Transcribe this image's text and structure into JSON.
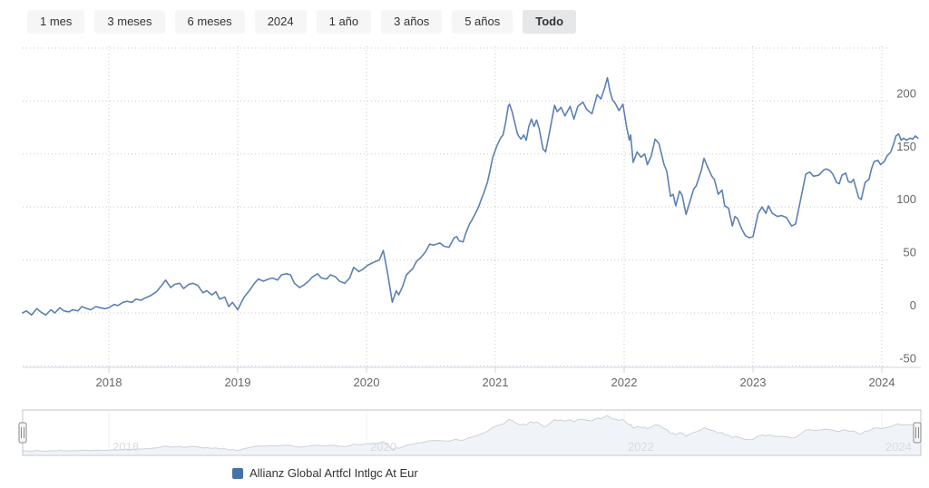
{
  "range_buttons": [
    {
      "label": "1 mes",
      "selected": false
    },
    {
      "label": "3 meses",
      "selected": false
    },
    {
      "label": "6 meses",
      "selected": false
    },
    {
      "label": "2024",
      "selected": false
    },
    {
      "label": "1 año",
      "selected": false
    },
    {
      "label": "3 años",
      "selected": false
    },
    {
      "label": "5 años",
      "selected": false
    },
    {
      "label": "Todo",
      "selected": true
    }
  ],
  "legend": {
    "label": "Allianz Global Artfcl Intlgc At Eur",
    "color": "#4572a7"
  },
  "chart_data": {
    "type": "line",
    "title": "",
    "xlabel": "",
    "ylabel": "",
    "series_name": "Allianz Global Artfcl Intlgc At Eur",
    "line_color": "#5b80b4",
    "grid_color": "#c9c9c9",
    "axis_label_color": "#666666",
    "ylim": [
      -53,
      250
    ],
    "yticks_labeled": [
      200,
      150,
      100,
      50,
      0,
      -50
    ],
    "ygrid": [
      250,
      200,
      150,
      100,
      50,
      0,
      -50
    ],
    "xticks": [
      2018,
      2019,
      2020,
      2021,
      2022,
      2023,
      2024
    ],
    "navigator_ticks": [
      2018,
      2020,
      2022,
      2024
    ],
    "x_unit": "year",
    "y_unit": "% cumulative return",
    "points": [
      [
        2017.33,
        0
      ],
      [
        2017.36,
        2
      ],
      [
        2017.4,
        -2
      ],
      [
        2017.44,
        4
      ],
      [
        2017.47,
        1
      ],
      [
        2017.51,
        -2
      ],
      [
        2017.55,
        3
      ],
      [
        2017.58,
        0
      ],
      [
        2017.62,
        5
      ],
      [
        2017.65,
        2
      ],
      [
        2017.69,
        1
      ],
      [
        2017.72,
        3
      ],
      [
        2017.76,
        2
      ],
      [
        2017.79,
        6
      ],
      [
        2017.83,
        4
      ],
      [
        2017.86,
        3
      ],
      [
        2017.9,
        6
      ],
      [
        2017.93,
        5
      ],
      [
        2017.97,
        4
      ],
      [
        2018.0,
        5
      ],
      [
        2018.04,
        8
      ],
      [
        2018.07,
        7
      ],
      [
        2018.11,
        10
      ],
      [
        2018.14,
        11
      ],
      [
        2018.18,
        10
      ],
      [
        2018.21,
        13
      ],
      [
        2018.25,
        12
      ],
      [
        2018.28,
        14
      ],
      [
        2018.32,
        16
      ],
      [
        2018.37,
        20
      ],
      [
        2018.41,
        26
      ],
      [
        2018.44,
        31
      ],
      [
        2018.48,
        24
      ],
      [
        2018.51,
        27
      ],
      [
        2018.55,
        28
      ],
      [
        2018.58,
        23
      ],
      [
        2018.62,
        27
      ],
      [
        2018.65,
        28
      ],
      [
        2018.69,
        26
      ],
      [
        2018.73,
        19
      ],
      [
        2018.76,
        21
      ],
      [
        2018.8,
        17
      ],
      [
        2018.83,
        20
      ],
      [
        2018.86,
        13
      ],
      [
        2018.9,
        15
      ],
      [
        2018.93,
        6
      ],
      [
        2018.96,
        10
      ],
      [
        2019.0,
        3
      ],
      [
        2019.05,
        15
      ],
      [
        2019.09,
        21
      ],
      [
        2019.13,
        28
      ],
      [
        2019.16,
        32
      ],
      [
        2019.2,
        30
      ],
      [
        2019.24,
        32
      ],
      [
        2019.27,
        33
      ],
      [
        2019.31,
        31
      ],
      [
        2019.34,
        36
      ],
      [
        2019.38,
        37
      ],
      [
        2019.41,
        36
      ],
      [
        2019.44,
        28
      ],
      [
        2019.48,
        24
      ],
      [
        2019.51,
        26
      ],
      [
        2019.55,
        30
      ],
      [
        2019.58,
        34
      ],
      [
        2019.62,
        37
      ],
      [
        2019.65,
        33
      ],
      [
        2019.69,
        32
      ],
      [
        2019.72,
        36
      ],
      [
        2019.76,
        34
      ],
      [
        2019.79,
        30
      ],
      [
        2019.83,
        28
      ],
      [
        2019.87,
        33
      ],
      [
        2019.9,
        43
      ],
      [
        2019.94,
        39
      ],
      [
        2019.97,
        41
      ],
      [
        2020.01,
        45
      ],
      [
        2020.06,
        48
      ],
      [
        2020.1,
        50
      ],
      [
        2020.13,
        59
      ],
      [
        2020.16,
        40
      ],
      [
        2020.18,
        25
      ],
      [
        2020.2,
        10
      ],
      [
        2020.23,
        21
      ],
      [
        2020.25,
        17
      ],
      [
        2020.28,
        25
      ],
      [
        2020.31,
        36
      ],
      [
        2020.36,
        42
      ],
      [
        2020.39,
        49
      ],
      [
        2020.42,
        52
      ],
      [
        2020.46,
        58
      ],
      [
        2020.49,
        65
      ],
      [
        2020.52,
        64
      ],
      [
        2020.57,
        66
      ],
      [
        2020.6,
        63
      ],
      [
        2020.64,
        62
      ],
      [
        2020.68,
        71
      ],
      [
        2020.7,
        72
      ],
      [
        2020.72,
        68
      ],
      [
        2020.75,
        67
      ],
      [
        2020.77,
        75
      ],
      [
        2020.8,
        84
      ],
      [
        2020.82,
        88
      ],
      [
        2020.85,
        95
      ],
      [
        2020.87,
        100
      ],
      [
        2020.89,
        107
      ],
      [
        2020.91,
        113
      ],
      [
        2020.94,
        124
      ],
      [
        2020.96,
        135
      ],
      [
        2020.98,
        147
      ],
      [
        2021.01,
        157
      ],
      [
        2021.04,
        165
      ],
      [
        2021.06,
        168
      ],
      [
        2021.08,
        180
      ],
      [
        2021.1,
        195
      ],
      [
        2021.11,
        197
      ],
      [
        2021.13,
        190
      ],
      [
        2021.15,
        180
      ],
      [
        2021.17,
        170
      ],
      [
        2021.18,
        167
      ],
      [
        2021.2,
        164
      ],
      [
        2021.22,
        168
      ],
      [
        2021.24,
        163
      ],
      [
        2021.26,
        176
      ],
      [
        2021.28,
        183
      ],
      [
        2021.3,
        176
      ],
      [
        2021.32,
        182
      ],
      [
        2021.34,
        174
      ],
      [
        2021.37,
        155
      ],
      [
        2021.39,
        152
      ],
      [
        2021.42,
        170
      ],
      [
        2021.46,
        196
      ],
      [
        2021.48,
        190
      ],
      [
        2021.51,
        194
      ],
      [
        2021.54,
        186
      ],
      [
        2021.58,
        195
      ],
      [
        2021.61,
        183
      ],
      [
        2021.64,
        195
      ],
      [
        2021.68,
        199
      ],
      [
        2021.71,
        192
      ],
      [
        2021.75,
        188
      ],
      [
        2021.79,
        206
      ],
      [
        2021.82,
        202
      ],
      [
        2021.85,
        213
      ],
      [
        2021.87,
        222
      ],
      [
        2021.89,
        209
      ],
      [
        2021.91,
        201
      ],
      [
        2021.93,
        198
      ],
      [
        2021.96,
        191
      ],
      [
        2021.99,
        197
      ],
      [
        2022.02,
        175
      ],
      [
        2022.04,
        163
      ],
      [
        2022.05,
        168
      ],
      [
        2022.07,
        142
      ],
      [
        2022.1,
        152
      ],
      [
        2022.13,
        147
      ],
      [
        2022.16,
        150
      ],
      [
        2022.18,
        140
      ],
      [
        2022.21,
        148
      ],
      [
        2022.24,
        164
      ],
      [
        2022.27,
        160
      ],
      [
        2022.31,
        140
      ],
      [
        2022.33,
        134
      ],
      [
        2022.36,
        110
      ],
      [
        2022.38,
        112
      ],
      [
        2022.4,
        101
      ],
      [
        2022.43,
        115
      ],
      [
        2022.45,
        111
      ],
      [
        2022.48,
        93
      ],
      [
        2022.51,
        105
      ],
      [
        2022.54,
        117
      ],
      [
        2022.56,
        120
      ],
      [
        2022.6,
        135
      ],
      [
        2022.62,
        146
      ],
      [
        2022.64,
        140
      ],
      [
        2022.68,
        129
      ],
      [
        2022.7,
        126
      ],
      [
        2022.73,
        112
      ],
      [
        2022.76,
        116
      ],
      [
        2022.78,
        101
      ],
      [
        2022.81,
        99
      ],
      [
        2022.84,
        82
      ],
      [
        2022.86,
        91
      ],
      [
        2022.88,
        89
      ],
      [
        2022.91,
        80
      ],
      [
        2022.94,
        73
      ],
      [
        2022.97,
        71
      ],
      [
        2023.0,
        72
      ],
      [
        2023.04,
        94
      ],
      [
        2023.07,
        100
      ],
      [
        2023.1,
        94
      ],
      [
        2023.12,
        101
      ],
      [
        2023.15,
        94
      ],
      [
        2023.19,
        91
      ],
      [
        2023.22,
        92
      ],
      [
        2023.26,
        90
      ],
      [
        2023.3,
        82
      ],
      [
        2023.33,
        84
      ],
      [
        2023.37,
        107
      ],
      [
        2023.41,
        131
      ],
      [
        2023.44,
        133
      ],
      [
        2023.47,
        129
      ],
      [
        2023.51,
        130
      ],
      [
        2023.55,
        135
      ],
      [
        2023.57,
        136
      ],
      [
        2023.6,
        134
      ],
      [
        2023.62,
        131
      ],
      [
        2023.65,
        123
      ],
      [
        2023.67,
        122
      ],
      [
        2023.69,
        130
      ],
      [
        2023.72,
        132
      ],
      [
        2023.74,
        124
      ],
      [
        2023.76,
        123
      ],
      [
        2023.78,
        126
      ],
      [
        2023.82,
        109
      ],
      [
        2023.84,
        107
      ],
      [
        2023.87,
        123
      ],
      [
        2023.9,
        126
      ],
      [
        2023.92,
        136
      ],
      [
        2023.94,
        143
      ],
      [
        2023.97,
        144
      ],
      [
        2023.99,
        140
      ],
      [
        2024.02,
        143
      ],
      [
        2024.04,
        148
      ],
      [
        2024.07,
        152
      ],
      [
        2024.09,
        159
      ],
      [
        2024.11,
        167
      ],
      [
        2024.13,
        169
      ],
      [
        2024.15,
        163
      ],
      [
        2024.17,
        165
      ],
      [
        2024.19,
        163
      ],
      [
        2024.22,
        165
      ],
      [
        2024.24,
        164
      ],
      [
        2024.26,
        167
      ],
      [
        2024.28,
        165
      ]
    ],
    "navigator": {
      "line_color": "#cbd2da",
      "fill_color": "#f0f4f8",
      "label_color": "#d8dbdf",
      "handle_color": "#8a8a8a"
    }
  }
}
